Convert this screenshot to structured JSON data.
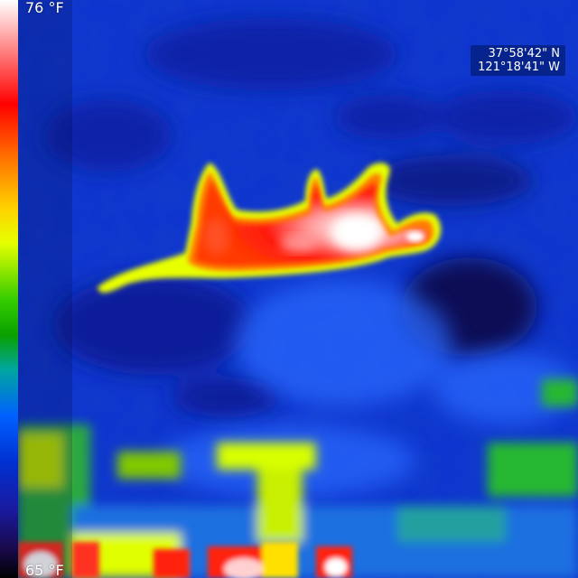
{
  "scale": {
    "max_label": "76 °F",
    "min_label": "65 °F"
  },
  "gps": {
    "latitude": "37°58'42\" N",
    "longitude": "121°18'41\" W"
  },
  "palette": {
    "background": "#0a2fc4",
    "hot_white": "#ffffff",
    "hot_red": "#ff1a10",
    "warm_yellow": "#f5ff00",
    "mid_green": "#28c800",
    "cool_blue": "#1e5cff",
    "cold_dark": "#0a0a60"
  },
  "scene": {
    "subject": "warm animal silhouette"
  }
}
